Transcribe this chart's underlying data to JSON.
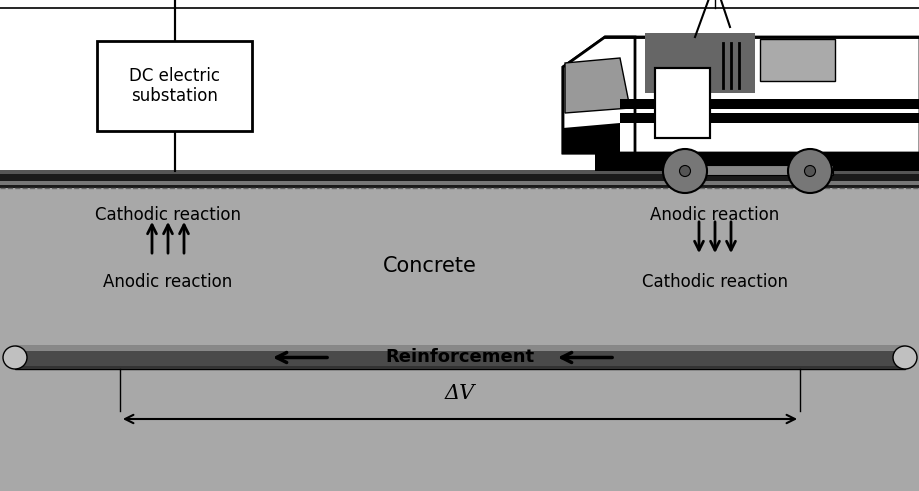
{
  "bg_color": "#ffffff",
  "concrete_color": "#a8a8a8",
  "lower_bg_color": "#b8b8b8",
  "track_dark_color": "#222222",
  "track_mid_color": "#888888",
  "track_light_color": "#aaaaaa",
  "reinf_color": "#555555",
  "reinf_top_color": "#888888",
  "substation_text": "DC electric\nsubstation",
  "cathodic_reaction_left": "Cathodic reaction",
  "anodic_reaction_left": "Anodic reaction",
  "cathodic_reaction_right": "Cathodic reaction",
  "anodic_reaction_right": "Anodic reaction",
  "concrete_label": "Concrete",
  "reinforcement_label": "Reinforcement",
  "delta_v_label": "ΔV"
}
